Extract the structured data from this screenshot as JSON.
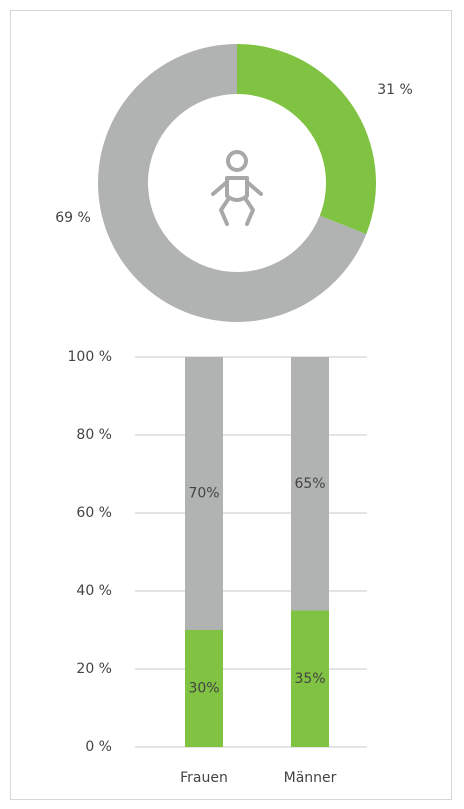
{
  "chart_data": [
    {
      "type": "pie",
      "values": [
        31,
        69
      ],
      "value_labels": [
        "31 %",
        "69 %"
      ],
      "colors": [
        "#80c242",
        "#b1b3b3"
      ],
      "donut": true
    },
    {
      "type": "stacked_bar",
      "categories": [
        "Frauen",
        "Männer"
      ],
      "series": [
        {
          "color": "#80c242",
          "values": [
            30,
            35
          ],
          "value_labels": [
            "30%",
            "35%"
          ]
        },
        {
          "color": "#b1b3b3",
          "values": [
            70,
            65
          ],
          "value_labels": [
            "70%",
            "65%"
          ]
        }
      ],
      "ylim": [
        0,
        100
      ],
      "yticks": [
        {
          "value": 0,
          "label": "0 %"
        },
        {
          "value": 20,
          "label": "20 %"
        },
        {
          "value": 40,
          "label": "40 %"
        },
        {
          "value": 60,
          "label": "60 %"
        },
        {
          "value": 80,
          "label": "80 %"
        },
        {
          "value": 100,
          "label": "100 %"
        }
      ],
      "grid": true
    }
  ]
}
